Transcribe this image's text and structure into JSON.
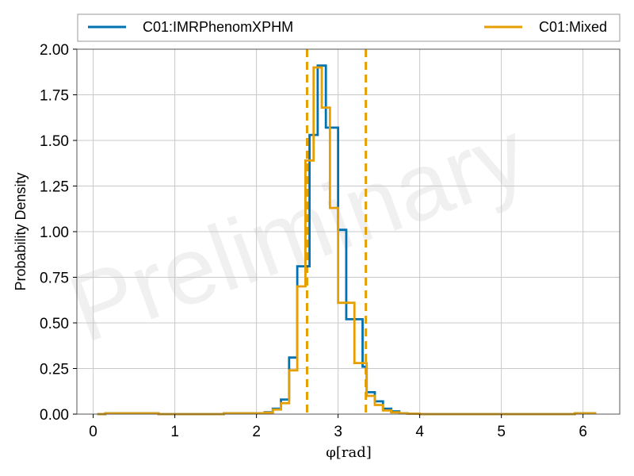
{
  "chart_data": {
    "type": "histogram",
    "xlabel": "φ[rad]",
    "ylabel": "Probability Density",
    "watermark": "Preliminary",
    "xlim": [
      -0.2,
      6.45
    ],
    "ylim": [
      0,
      2.0
    ],
    "xticks": [
      0,
      1,
      2,
      3,
      4,
      5,
      6
    ],
    "yticks": [
      0.0,
      0.25,
      0.5,
      0.75,
      1.0,
      1.25,
      1.5,
      1.75,
      2.0
    ],
    "ytick_labels": [
      "0.00",
      "0.25",
      "0.50",
      "0.75",
      "1.00",
      "1.25",
      "1.50",
      "1.75",
      "2.00"
    ],
    "grid": true,
    "legend_placement": "top, outside, two columns",
    "series": [
      {
        "name": "C01:IMRPhenomXPHM",
        "color": "#0072b2",
        "edges": [
          0.05,
          0.15,
          0.8,
          1.6,
          2.1,
          2.2,
          2.3,
          2.4,
          2.5,
          2.6,
          2.65,
          2.75,
          2.85,
          3.0,
          3.1,
          3.2,
          3.3,
          3.35,
          3.45,
          3.55,
          3.65,
          3.75,
          3.85,
          4.0,
          5.9,
          6.15
        ],
        "densities": [
          0.0,
          0.005,
          0.0,
          0.005,
          0.01,
          0.03,
          0.08,
          0.31,
          0.81,
          0.81,
          1.53,
          1.91,
          1.57,
          1.01,
          0.52,
          0.52,
          0.26,
          0.12,
          0.07,
          0.03,
          0.015,
          0.005,
          0.002,
          0.0,
          0.005
        ]
      },
      {
        "name": "C01:Mixed",
        "color": "#e69f00",
        "edges": [
          0.05,
          0.15,
          0.8,
          1.6,
          2.1,
          2.2,
          2.3,
          2.4,
          2.5,
          2.6,
          2.7,
          2.8,
          2.9,
          3.0,
          3.1,
          3.2,
          3.3,
          3.35,
          3.45,
          3.55,
          3.65,
          3.75,
          3.85,
          4.0,
          5.9,
          6.15
        ],
        "densities": [
          0.0,
          0.004,
          0.0,
          0.004,
          0.008,
          0.025,
          0.06,
          0.24,
          0.7,
          1.39,
          1.9,
          1.68,
          1.13,
          0.61,
          0.61,
          0.28,
          0.28,
          0.1,
          0.05,
          0.02,
          0.01,
          0.004,
          0.002,
          0.0,
          0.004
        ]
      }
    ],
    "vlines": [
      {
        "x": 2.62,
        "color": "#e69f00",
        "style": "dashed"
      },
      {
        "x": 3.34,
        "color": "#e69f00",
        "style": "dashed"
      }
    ]
  }
}
